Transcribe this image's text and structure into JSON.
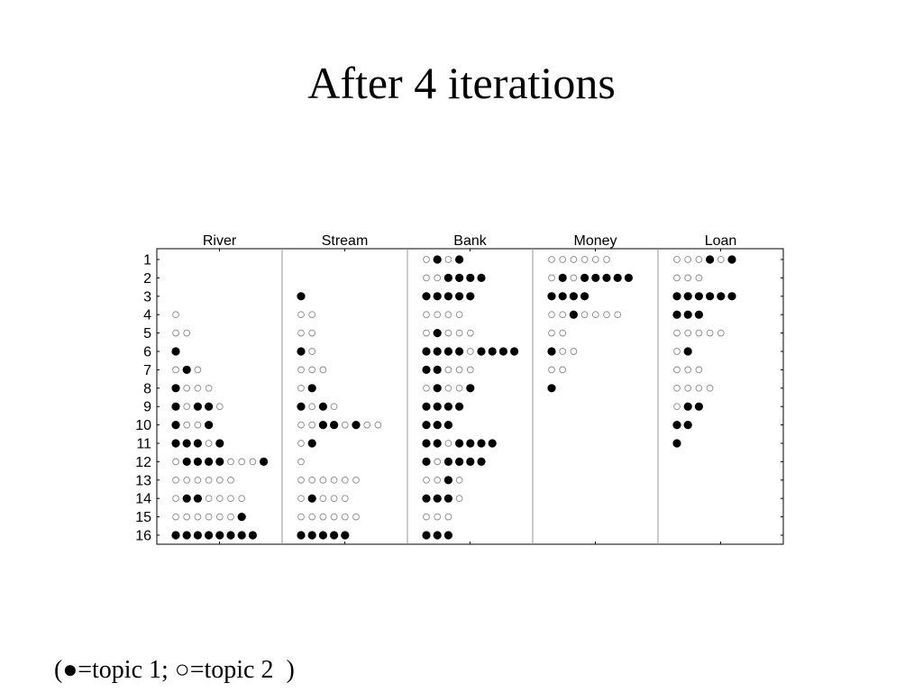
{
  "slide": {
    "title": "After 4 iterations",
    "legend_text": "(●=topic 1; ○=topic 2  )"
  },
  "chart_data": {
    "type": "scatter",
    "columns": [
      "River",
      "Stream",
      "Bank",
      "Money",
      "Loan"
    ],
    "rows": [
      "1",
      "2",
      "3",
      "4",
      "5",
      "6",
      "7",
      "8",
      "9",
      "10",
      "11",
      "12",
      "13",
      "14",
      "15",
      "16"
    ],
    "legend": [
      {
        "symbol": "filled-circle",
        "label": "topic 1"
      },
      {
        "symbol": "open-circle",
        "label": "topic 2"
      }
    ],
    "tokens": {
      "River": [
        "",
        "",
        "",
        "2",
        "22",
        "1",
        "212",
        "1222",
        "12112",
        "1221",
        "11121",
        "211112221",
        "222222",
        "2112222",
        "2222221",
        "11111111"
      ],
      "Stream": [
        "",
        "",
        "1",
        "22",
        "22",
        "12",
        "222",
        "21",
        "1212",
        "22112122",
        "21",
        "2",
        "222222",
        "21222",
        "222222",
        "11111"
      ],
      "Bank": [
        "2121",
        "221111",
        "11111",
        "2222",
        "21222",
        "111121111",
        "11222",
        "21221",
        "1111",
        "111",
        "1121111",
        "121111",
        "2212",
        "1112",
        "222",
        "111"
      ],
      "Money": [
        "222222",
        "21211111",
        "1111",
        "2212222",
        "22",
        "122",
        "22",
        "1",
        "",
        "",
        "",
        "",
        "",
        "",
        "",
        ""
      ],
      "Loan": [
        "222121",
        "222",
        "111111",
        "111",
        "22222",
        "21",
        "222",
        "2222",
        "211",
        "11",
        "1",
        "",
        "",
        "",
        "",
        ""
      ]
    },
    "encoding": {
      "1": "topic 1 (filled)",
      "2": "topic 2 (open)"
    },
    "grid": false,
    "colors": {
      "topic1": "#000000",
      "topic2": "#888888",
      "frame": "#000000",
      "divider": "#999999"
    }
  }
}
